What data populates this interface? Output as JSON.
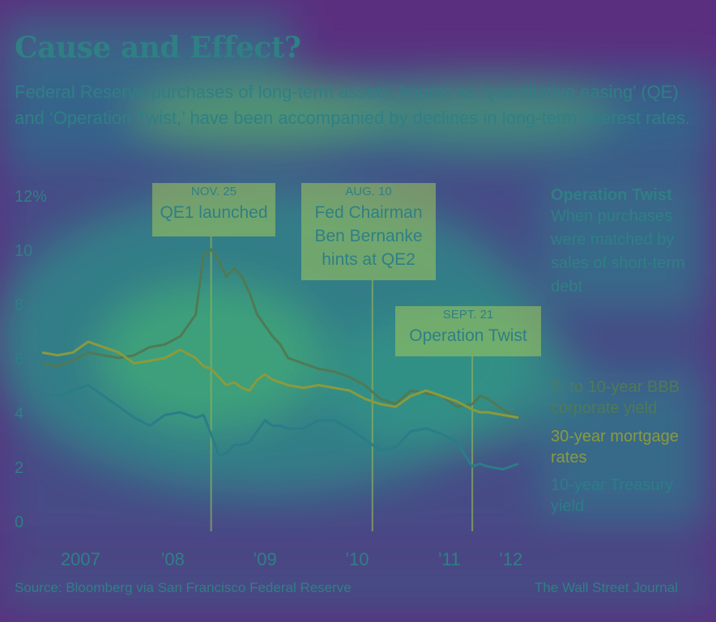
{
  "header": {
    "title": "Cause and Effect?",
    "subtitle": "Federal Reserve purchases of long-term assets, known as ‘quantitative easing’ (QE) and ‘Operation Twist,’ have been accompanied by declines in long-term interest rates."
  },
  "annotations": [
    {
      "date": "NOV. 25",
      "text": "QE1 launched"
    },
    {
      "date": "AUG. 10",
      "text": "Fed Chairman Ben Bernanke hints at QE2"
    },
    {
      "date": "SEPT. 21",
      "text": "Operation Twist"
    }
  ],
  "side_note": {
    "title": "Operation Twist",
    "text": "When purchases were matched by sales of short-term debt"
  },
  "footer": {
    "source": "Source: Bloomberg via San Francisco Federal Reserve",
    "credit": "The Wall Street Journal"
  },
  "colors": {
    "title": "#2f7f85",
    "bbb": "#4f7a55",
    "mortgage": "#8a9a3d",
    "treasury": "#2a7d88",
    "annotation_box": "#a4c85a"
  },
  "chart_data": {
    "type": "line",
    "ylim": [
      0,
      12
    ],
    "yticks": [
      "12%",
      "10",
      "8",
      "6",
      "4",
      "2",
      "0"
    ],
    "xticks": [
      "2007",
      "’08",
      "’09",
      "’10",
      "’11",
      "’12"
    ],
    "x_range": [
      "2007-01",
      "2012-03"
    ],
    "events": [
      {
        "label": "NOV. 25",
        "x": "2008-11"
      },
      {
        "label": "AUG. 10",
        "x": "2010-08"
      },
      {
        "label": "SEPT. 21",
        "x": "2011-09"
      }
    ],
    "x": [
      "2007-01",
      "2007-03",
      "2007-05",
      "2007-07",
      "2007-09",
      "2007-11",
      "2008-01",
      "2008-03",
      "2008-05",
      "2008-07",
      "2008-09",
      "2008-10",
      "2008-11",
      "2008-12",
      "2009-01",
      "2009-02",
      "2009-03",
      "2009-04",
      "2009-05",
      "2009-06",
      "2009-07",
      "2009-08",
      "2009-09",
      "2009-11",
      "2010-01",
      "2010-03",
      "2010-05",
      "2010-07",
      "2010-09",
      "2010-11",
      "2011-01",
      "2011-03",
      "2011-05",
      "2011-07",
      "2011-09",
      "2011-10",
      "2011-11",
      "2012-01",
      "2012-03"
    ],
    "series": [
      {
        "name": "7- to 10-year BBB corporate yield",
        "values": [
          5.8,
          5.7,
          5.9,
          6.2,
          6.1,
          6.0,
          6.1,
          6.4,
          6.5,
          6.8,
          7.6,
          9.8,
          10.0,
          9.6,
          9.0,
          9.3,
          9.0,
          8.4,
          7.6,
          7.2,
          6.8,
          6.5,
          6.0,
          5.8,
          5.6,
          5.5,
          5.3,
          5.0,
          4.5,
          4.3,
          4.8,
          4.7,
          4.6,
          4.2,
          4.3,
          4.6,
          4.5,
          4.1,
          3.8
        ]
      },
      {
        "name": "30-year mortgage rates",
        "values": [
          6.2,
          6.1,
          6.2,
          6.6,
          6.4,
          6.2,
          5.8,
          5.9,
          6.0,
          6.3,
          6.0,
          5.7,
          5.6,
          5.3,
          5.0,
          5.1,
          4.9,
          4.8,
          5.2,
          5.4,
          5.2,
          5.1,
          5.0,
          4.9,
          5.0,
          4.9,
          4.8,
          4.5,
          4.3,
          4.2,
          4.6,
          4.8,
          4.6,
          4.4,
          4.1,
          4.0,
          4.0,
          3.9,
          3.8
        ]
      },
      {
        "name": "10-year Treasury yield",
        "values": [
          4.7,
          4.6,
          4.8,
          5.0,
          4.6,
          4.2,
          3.8,
          3.5,
          3.9,
          4.0,
          3.8,
          3.9,
          3.2,
          2.4,
          2.5,
          2.8,
          2.8,
          2.9,
          3.3,
          3.7,
          3.5,
          3.5,
          3.4,
          3.4,
          3.7,
          3.7,
          3.4,
          3.0,
          2.6,
          2.7,
          3.3,
          3.4,
          3.2,
          2.9,
          2.0,
          2.1,
          2.0,
          1.9,
          2.1
        ]
      }
    ]
  }
}
